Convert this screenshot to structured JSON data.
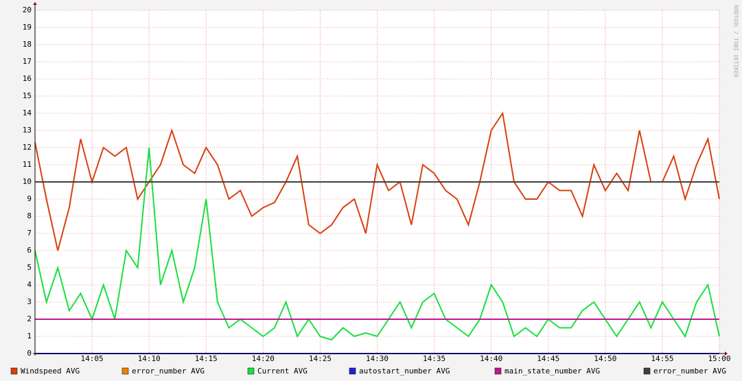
{
  "chart_data": {
    "type": "line",
    "watermark": "RRDTOOL / TOBI OETIKER",
    "x": [
      0,
      1,
      2,
      3,
      4,
      5,
      6,
      7,
      8,
      9,
      10,
      11,
      12,
      13,
      14,
      15,
      16,
      17,
      18,
      19,
      20,
      21,
      22,
      23,
      24,
      25,
      26,
      27,
      28,
      29,
      30,
      31,
      32,
      33,
      34,
      35,
      36,
      37,
      38,
      39,
      40,
      41,
      42,
      43,
      44,
      45,
      46,
      47,
      48,
      49,
      50,
      51,
      52,
      53,
      54,
      55,
      56,
      57,
      58,
      59,
      60
    ],
    "xlim": [
      0,
      60
    ],
    "xticks": [
      {
        "value": 5,
        "label": "14:05"
      },
      {
        "value": 10,
        "label": "14:10"
      },
      {
        "value": 15,
        "label": "14:15"
      },
      {
        "value": 20,
        "label": "14:20"
      },
      {
        "value": 25,
        "label": "14:25"
      },
      {
        "value": 30,
        "label": "14:30"
      },
      {
        "value": 35,
        "label": "14:35"
      },
      {
        "value": 40,
        "label": "14:40"
      },
      {
        "value": 45,
        "label": "14:45"
      },
      {
        "value": 50,
        "label": "14:50"
      },
      {
        "value": 55,
        "label": "14:55"
      },
      {
        "value": 60,
        "label": "15:00"
      }
    ],
    "ylim": [
      0,
      20
    ],
    "yticks": [
      0,
      1,
      2,
      3,
      4,
      5,
      6,
      7,
      8,
      9,
      10,
      11,
      12,
      13,
      14,
      15,
      16,
      17,
      18,
      19,
      20
    ],
    "grid": true,
    "series": [
      {
        "name": "Windspeed AVG",
        "color": "#d84010",
        "values": [
          12.3,
          9,
          6,
          8.5,
          12.5,
          10,
          12,
          11.5,
          12,
          9,
          10,
          11,
          13,
          11,
          10.5,
          12,
          11,
          9,
          9.5,
          8,
          8.5,
          8.8,
          10,
          11.5,
          7.5,
          7,
          7.5,
          8.5,
          9,
          7,
          11,
          9.5,
          10,
          7.5,
          11,
          10.5,
          9.5,
          9,
          7.5,
          10,
          13,
          14,
          10,
          9,
          9,
          10,
          9.5,
          9.5,
          8,
          11,
          9.5,
          10.5,
          9.5,
          13,
          10,
          10,
          11.5,
          9,
          11,
          12.5,
          9
        ]
      },
      {
        "name": "error_number AVG",
        "color": "#f08000",
        "values": [
          0,
          0,
          0,
          0,
          0,
          0,
          0,
          0,
          0,
          0,
          0,
          0,
          0,
          0,
          0,
          0,
          0,
          0,
          0,
          0,
          0,
          0,
          0,
          0,
          0,
          0,
          0,
          0,
          0,
          0,
          0,
          0,
          0,
          0,
          0,
          0,
          0,
          0,
          0,
          0,
          0,
          0,
          0,
          0,
          0,
          0,
          0,
          0,
          0,
          0,
          0,
          0,
          0,
          0,
          0,
          0,
          0,
          0,
          0,
          0,
          0
        ]
      },
      {
        "name": "Current AVG",
        "color": "#18e040",
        "values": [
          6,
          3,
          5,
          2.5,
          3.5,
          2,
          4,
          2,
          6,
          5,
          12,
          4,
          6,
          3,
          5,
          9,
          3,
          1.5,
          2,
          1.5,
          1,
          1.5,
          3,
          1,
          2,
          1,
          0.8,
          1.5,
          1,
          1.2,
          1,
          2,
          3,
          1.5,
          3,
          3.5,
          2,
          1.5,
          1,
          2,
          4,
          3,
          1,
          1.5,
          1,
          2,
          1.5,
          1.5,
          2.5,
          3,
          2,
          1,
          2,
          3,
          1.5,
          3,
          2,
          1,
          3,
          4,
          1
        ]
      },
      {
        "name": "autostart_number AVG",
        "color": "#2020d0",
        "values": [
          0,
          0,
          0,
          0,
          0,
          0,
          0,
          0,
          0,
          0,
          0,
          0,
          0,
          0,
          0,
          0,
          0,
          0,
          0,
          0,
          0,
          0,
          0,
          0,
          0,
          0,
          0,
          0,
          0,
          0,
          0,
          0,
          0,
          0,
          0,
          0,
          0,
          0,
          0,
          0,
          0,
          0,
          0,
          0,
          0,
          0,
          0,
          0,
          0,
          0,
          0,
          0,
          0,
          0,
          0,
          0,
          0,
          0,
          0,
          0,
          0
        ]
      },
      {
        "name": "main_state_number AVG",
        "color": "#c01890",
        "values": [
          2,
          2,
          2,
          2,
          2,
          2,
          2,
          2,
          2,
          2,
          2,
          2,
          2,
          2,
          2,
          2,
          2,
          2,
          2,
          2,
          2,
          2,
          2,
          2,
          2,
          2,
          2,
          2,
          2,
          2,
          2,
          2,
          2,
          2,
          2,
          2,
          2,
          2,
          2,
          2,
          2,
          2,
          2,
          2,
          2,
          2,
          2,
          2,
          2,
          2,
          2,
          2,
          2,
          2,
          2,
          2,
          2,
          2,
          2,
          2,
          2
        ]
      },
      {
        "name": "error_number AVG",
        "color": "#404040",
        "values": [
          10,
          10,
          10,
          10,
          10,
          10,
          10,
          10,
          10,
          10,
          10,
          10,
          10,
          10,
          10,
          10,
          10,
          10,
          10,
          10,
          10,
          10,
          10,
          10,
          10,
          10,
          10,
          10,
          10,
          10,
          10,
          10,
          10,
          10,
          10,
          10,
          10,
          10,
          10,
          10,
          10,
          10,
          10,
          10,
          10,
          10,
          10,
          10,
          10,
          10,
          10,
          10,
          10,
          10,
          10,
          10,
          10,
          10,
          10,
          10,
          10
        ]
      }
    ]
  }
}
